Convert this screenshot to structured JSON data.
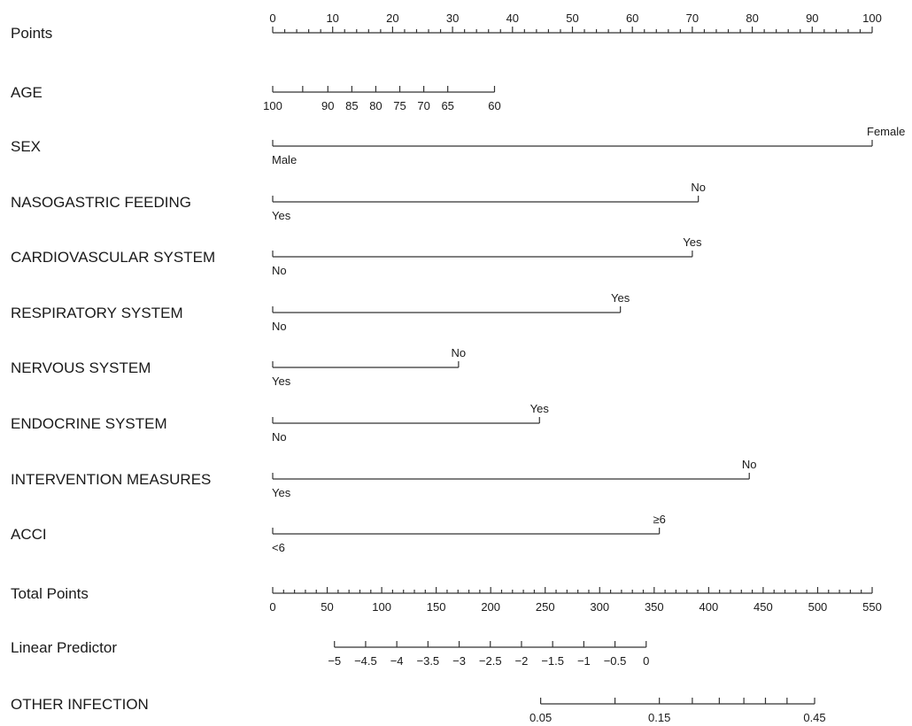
{
  "chart_data": {
    "type": "nomogram",
    "title": "",
    "rows": [
      {
        "label": "Points",
        "kind": "axis",
        "min": 0,
        "max": 100,
        "ticks": [
          0,
          10,
          20,
          30,
          40,
          50,
          60,
          70,
          80,
          90,
          100
        ],
        "tick_labels": [
          "0",
          "10",
          "20",
          "30",
          "40",
          "50",
          "60",
          "70",
          "80",
          "90",
          "100"
        ],
        "minor_ticks": [
          2,
          4,
          6,
          8,
          12,
          14,
          16,
          18,
          22,
          24,
          26,
          28,
          32,
          34,
          36,
          38,
          42,
          44,
          46,
          48,
          52,
          54,
          56,
          58,
          62,
          64,
          66,
          68,
          72,
          74,
          76,
          78,
          82,
          84,
          86,
          88,
          92,
          94,
          96,
          98
        ],
        "labels_position": "above"
      },
      {
        "label": "AGE",
        "kind": "axis",
        "ticks": [
          {
            "value": "100",
            "points": 0
          },
          {
            "value": "95",
            "points": 5
          },
          {
            "value": "90",
            "points": 9.2
          },
          {
            "value": "85",
            "points": 13.2
          },
          {
            "value": "80",
            "points": 17.2
          },
          {
            "value": "75",
            "points": 21.2
          },
          {
            "value": "70",
            "points": 25.2
          },
          {
            "value": "65",
            "points": 29.2
          },
          {
            "value": "60",
            "points": 37
          }
        ],
        "tick_labels": [
          "100",
          "",
          "90",
          "85",
          "80",
          "75",
          "70",
          "65",
          "60"
        ],
        "labels_position": "below"
      },
      {
        "label": "SEX",
        "kind": "categorical",
        "levels": [
          {
            "name": "Male",
            "points": 0,
            "label_side": "below"
          },
          {
            "name": "Female",
            "points": 100,
            "label_side": "above"
          }
        ]
      },
      {
        "label": "NASOGASTRIC FEEDING",
        "kind": "categorical",
        "levels": [
          {
            "name": "Yes",
            "points": 0,
            "label_side": "below"
          },
          {
            "name": "No",
            "points": 71,
            "label_side": "above"
          }
        ]
      },
      {
        "label": "CARDIOVASCULAR SYSTEM",
        "kind": "categorical",
        "levels": [
          {
            "name": "No",
            "points": 0,
            "label_side": "below"
          },
          {
            "name": "Yes",
            "points": 70,
            "label_side": "above"
          }
        ]
      },
      {
        "label": "RESPIRATORY SYSTEM",
        "kind": "categorical",
        "levels": [
          {
            "name": "No",
            "points": 0,
            "label_side": "below"
          },
          {
            "name": "Yes",
            "points": 58,
            "label_side": "above"
          }
        ]
      },
      {
        "label": "NERVOUS SYSTEM",
        "kind": "categorical",
        "levels": [
          {
            "name": "Yes",
            "points": 0,
            "label_side": "below"
          },
          {
            "name": "No",
            "points": 31,
            "label_side": "above"
          }
        ]
      },
      {
        "label": "ENDOCRINE SYSTEM",
        "kind": "categorical",
        "levels": [
          {
            "name": "No",
            "points": 0,
            "label_side": "below"
          },
          {
            "name": "Yes",
            "points": 44.5,
            "label_side": "above"
          }
        ]
      },
      {
        "label": "INTERVENTION MEASURES",
        "kind": "categorical",
        "levels": [
          {
            "name": "Yes",
            "points": 0,
            "label_side": "below"
          },
          {
            "name": "No",
            "points": 79.5,
            "label_side": "above"
          }
        ]
      },
      {
        "label": "ACCI",
        "kind": "categorical",
        "levels": [
          {
            "name": "<6",
            "points": 0,
            "label_side": "below"
          },
          {
            "name": "≥6",
            "points": 64.5,
            "label_side": "above"
          }
        ]
      },
      {
        "label": "Total Points",
        "kind": "axis",
        "min": 0,
        "max": 550,
        "ticks": [
          0,
          50,
          100,
          150,
          200,
          250,
          300,
          350,
          400,
          450,
          500,
          550
        ],
        "tick_labels": [
          "0",
          "50",
          "100",
          "150",
          "200",
          "250",
          "300",
          "350",
          "400",
          "450",
          "500",
          "550"
        ],
        "minor_ticks": [
          10,
          20,
          30,
          40,
          60,
          70,
          80,
          90,
          110,
          120,
          130,
          140,
          160,
          170,
          180,
          190,
          210,
          220,
          230,
          240,
          260,
          270,
          280,
          290,
          310,
          320,
          330,
          340,
          360,
          370,
          380,
          390,
          410,
          420,
          430,
          440,
          460,
          470,
          480,
          490,
          510,
          520,
          530,
          540
        ],
        "labels_position": "below"
      },
      {
        "label": "Linear Predictor",
        "kind": "axis",
        "ticks": [
          {
            "value": -5,
            "points": 10.3
          },
          {
            "value": -4.5,
            "points": 15.5
          },
          {
            "value": -4,
            "points": 20.7
          },
          {
            "value": -3.5,
            "points": 25.9
          },
          {
            "value": -3,
            "points": 31.1
          },
          {
            "value": -2.5,
            "points": 36.3
          },
          {
            "value": -2,
            "points": 41.5
          },
          {
            "value": -1.5,
            "points": 46.7
          },
          {
            "value": -1,
            "points": 51.9
          },
          {
            "value": -0.5,
            "points": 57.1
          },
          {
            "value": 0,
            "points": 62.3
          }
        ],
        "tick_labels": [
          "−5",
          "−4.5",
          "−4",
          "−3.5",
          "−3",
          "−2.5",
          "−2",
          "−1.5",
          "−1",
          "−0.5",
          "0"
        ],
        "labels_position": "below"
      },
      {
        "label": "OTHER INFECTION",
        "kind": "axis",
        "ticks": [
          {
            "value": 0.05,
            "points": 44.7
          },
          {
            "value": 0.1,
            "points": 57.1
          },
          {
            "value": 0.15,
            "points": 64.5
          },
          {
            "value": 0.2,
            "points": 70
          },
          {
            "value": 0.25,
            "points": 74.5
          },
          {
            "value": 0.3,
            "points": 78.6
          },
          {
            "value": 0.35,
            "points": 82.2
          },
          {
            "value": 0.4,
            "points": 85.8
          },
          {
            "value": 0.45,
            "points": 90.4
          }
        ],
        "tick_labels": [
          "0.05",
          "",
          "0.15",
          "",
          "",
          "",
          "",
          "",
          "0.45"
        ],
        "labels_position": "below"
      }
    ]
  }
}
